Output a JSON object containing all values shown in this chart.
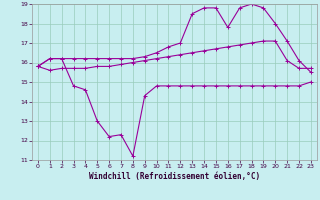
{
  "xlabel": "Windchill (Refroidissement éolien,°C)",
  "background_color": "#c8eef0",
  "line_color": "#990099",
  "grid_color": "#99ccbb",
  "xlim": [
    -0.5,
    23.5
  ],
  "ylim": [
    11,
    19
  ],
  "yticks": [
    11,
    12,
    13,
    14,
    15,
    16,
    17,
    18,
    19
  ],
  "xticks": [
    0,
    1,
    2,
    3,
    4,
    5,
    6,
    7,
    8,
    9,
    10,
    11,
    12,
    13,
    14,
    15,
    16,
    17,
    18,
    19,
    20,
    21,
    22,
    23
  ],
  "line1_x": [
    0,
    1,
    2,
    3,
    4,
    5,
    6,
    7,
    8,
    9,
    10,
    11,
    12,
    13,
    14,
    15,
    16,
    17,
    18,
    19,
    20,
    21,
    22,
    23
  ],
  "line1_y": [
    15.8,
    16.2,
    16.2,
    14.8,
    14.6,
    13.0,
    12.2,
    12.3,
    11.2,
    14.3,
    14.8,
    14.8,
    14.8,
    14.8,
    14.8,
    14.8,
    14.8,
    14.8,
    14.8,
    14.8,
    14.8,
    14.8,
    14.8,
    15.0
  ],
  "line2_x": [
    0,
    1,
    2,
    3,
    4,
    5,
    6,
    7,
    8,
    9,
    10,
    11,
    12,
    13,
    14,
    15,
    16,
    17,
    18,
    19,
    20,
    21,
    22,
    23
  ],
  "line2_y": [
    15.8,
    15.6,
    15.7,
    15.7,
    15.7,
    15.8,
    15.8,
    15.9,
    16.0,
    16.1,
    16.2,
    16.3,
    16.4,
    16.5,
    16.6,
    16.7,
    16.8,
    16.9,
    17.0,
    17.1,
    17.1,
    16.1,
    15.7,
    15.7
  ],
  "line3_x": [
    0,
    1,
    2,
    3,
    4,
    5,
    6,
    7,
    8,
    9,
    10,
    11,
    12,
    13,
    14,
    15,
    16,
    17,
    18,
    19,
    20,
    21,
    22,
    23
  ],
  "line3_y": [
    15.8,
    16.2,
    16.2,
    16.2,
    16.2,
    16.2,
    16.2,
    16.2,
    16.2,
    16.3,
    16.5,
    16.8,
    17.0,
    18.5,
    18.8,
    18.8,
    17.8,
    18.8,
    19.0,
    18.8,
    18.0,
    17.1,
    16.1,
    15.5
  ]
}
